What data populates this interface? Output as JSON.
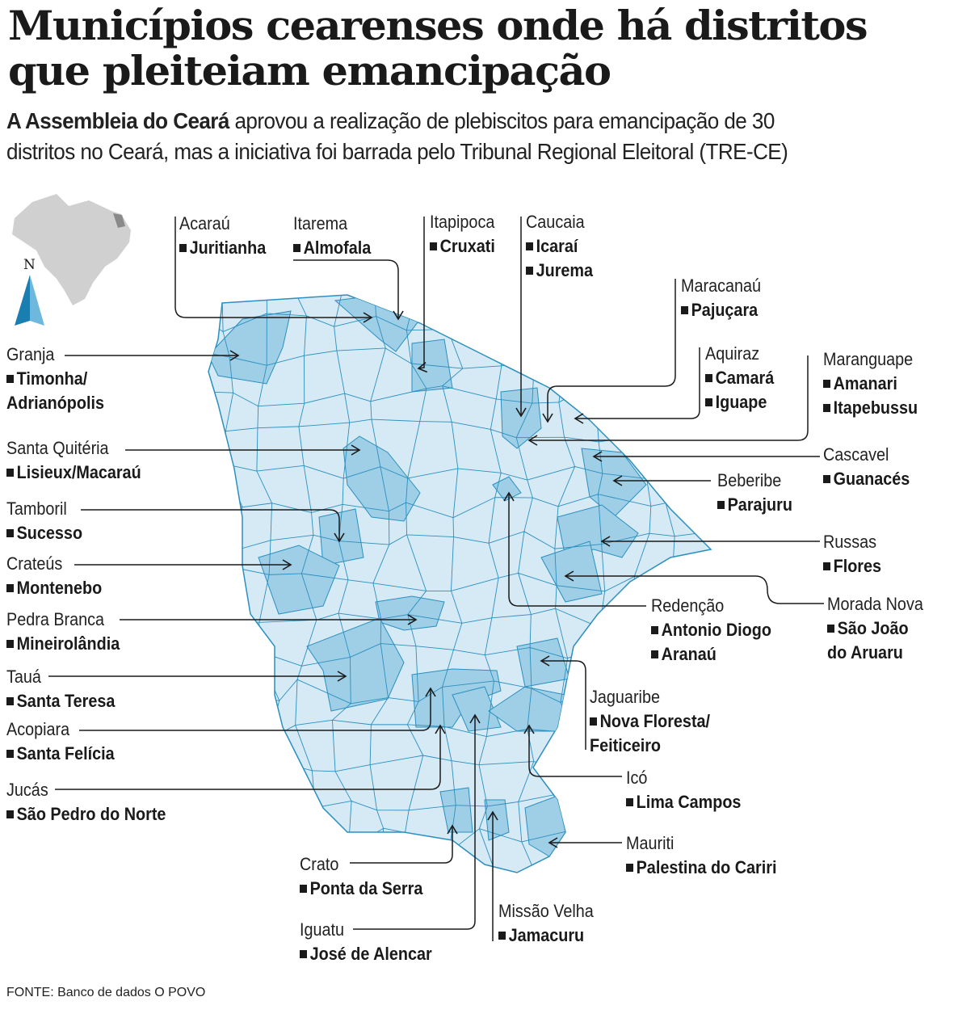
{
  "title": "Municípios cearenses onde há distritos que pleiteiam emancipação",
  "subtitle": {
    "bold": "A Assembleia do Ceará",
    "line1_rest": " aprovou a realização de plebiscitos para emancipação de 30",
    "line2": "distritos no Ceará, mas a iniciativa foi barrada pelo Tribunal Regional Eleitoral (TRE-CE)"
  },
  "compass_label": "N",
  "colors": {
    "map_fill": "#d6eaf5",
    "highlight_fill": "#9ecfe6",
    "border": "#2b8fbf",
    "locator_brazil": "#d0d0d0",
    "locator_ceara": "#8a8a8a",
    "text": "#1a1a1a"
  },
  "labels": [
    {
      "municipio": "Acaraú",
      "distritos": [
        "Juritianha"
      ]
    },
    {
      "municipio": "Itarema",
      "distritos": [
        "Almofala"
      ]
    },
    {
      "municipio": "Itapipoca",
      "distritos": [
        "Cruxati"
      ]
    },
    {
      "municipio": "Caucaia",
      "distritos": [
        "Icaraí",
        "Jurema"
      ]
    },
    {
      "municipio": "Maracanaú",
      "distritos": [
        "Pajuçara"
      ]
    },
    {
      "municipio": "Aquiraz",
      "distritos": [
        "Camará",
        "Iguape"
      ]
    },
    {
      "municipio": "Maranguape",
      "distritos": [
        "Amanari",
        "Itapebussu"
      ]
    },
    {
      "municipio": "Granja",
      "distritos": [
        "Timonha/",
        "Adrianópolis"
      ]
    },
    {
      "municipio": "Santa Quitéria",
      "distritos": [
        "Lisieux/Macaraú"
      ]
    },
    {
      "municipio": "Tamboril",
      "distritos": [
        "Sucesso"
      ]
    },
    {
      "municipio": "Crateús",
      "distritos": [
        "Montenebo"
      ]
    },
    {
      "municipio": "Pedra Branca",
      "distritos": [
        "Mineirolândia"
      ]
    },
    {
      "municipio": "Tauá",
      "distritos": [
        "Santa Teresa"
      ]
    },
    {
      "municipio": "Acopiara",
      "distritos": [
        "Santa Felícia"
      ]
    },
    {
      "municipio": "Jucás",
      "distritos": [
        "São Pedro do Norte"
      ]
    },
    {
      "municipio": "Cascavel",
      "distritos": [
        "Guanacés"
      ]
    },
    {
      "municipio": "Beberibe",
      "distritos": [
        "Parajuru"
      ]
    },
    {
      "municipio": "Russas",
      "distritos": [
        "Flores"
      ]
    },
    {
      "municipio": "Morada Nova",
      "distritos": [
        "São João",
        "do Aruaru"
      ]
    },
    {
      "municipio": "Redenção",
      "distritos": [
        "Antonio Diogo",
        "Aranaú"
      ]
    },
    {
      "municipio": "Jaguaribe",
      "distritos": [
        "Nova Floresta/",
        "Feiticeiro"
      ]
    },
    {
      "municipio": "Icó",
      "distritos": [
        "Lima Campos"
      ]
    },
    {
      "municipio": "Mauriti",
      "distritos": [
        "Palestina do Cariri"
      ]
    },
    {
      "municipio": "Crato",
      "distritos": [
        "Ponta da Serra"
      ]
    },
    {
      "municipio": "Missão Velha",
      "distritos": [
        "Jamacuru"
      ]
    },
    {
      "municipio": "Iguatu",
      "distritos": [
        "José de Alencar"
      ]
    }
  ],
  "source": "FONTE: Banco de dados O POVO"
}
